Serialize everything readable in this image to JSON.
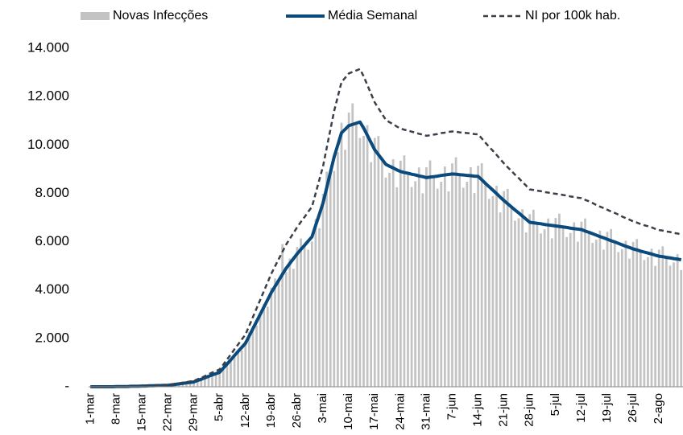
{
  "chart_data": {
    "type": "combo",
    "categories": [
      "1-mar",
      null,
      null,
      null,
      null,
      null,
      null,
      "8-mar",
      null,
      null,
      null,
      null,
      null,
      null,
      "15-mar",
      null,
      null,
      null,
      null,
      null,
      null,
      "22-mar",
      null,
      null,
      null,
      null,
      null,
      null,
      "29-mar",
      null,
      null,
      null,
      null,
      null,
      null,
      "5-abr",
      null,
      null,
      null,
      null,
      null,
      null,
      "12-abr",
      null,
      null,
      null,
      null,
      null,
      null,
      "19-abr",
      null,
      null,
      null,
      null,
      null,
      null,
      "26-abr",
      null,
      null,
      null,
      null,
      null,
      null,
      "3-mai",
      null,
      null,
      null,
      null,
      null,
      null,
      "10-mai",
      null,
      null,
      null,
      null,
      null,
      null,
      "17-mai",
      null,
      null,
      null,
      null,
      null,
      null,
      "24-mai",
      null,
      null,
      null,
      null,
      null,
      null,
      "31-mai",
      null,
      null,
      null,
      null,
      null,
      null,
      "7-jun",
      null,
      null,
      null,
      null,
      null,
      null,
      "14-jun",
      null,
      null,
      null,
      null,
      null,
      null,
      "21-jun",
      null,
      null,
      null,
      null,
      null,
      null,
      "28-jun",
      null,
      null,
      null,
      null,
      null,
      null,
      "5-jul",
      null,
      null,
      null,
      null,
      null,
      null,
      "12-jul",
      null,
      null,
      null,
      null,
      null,
      null,
      "19-jul",
      null,
      null,
      null,
      null,
      null,
      null,
      "26-jul",
      null,
      null,
      null,
      null,
      null,
      null,
      "2-ago",
      null,
      null,
      null,
      null,
      null,
      null
    ],
    "series": [
      {
        "name": "Novas Infecções",
        "type": "bar",
        "color": "#c3c3c3",
        "values": [
          0,
          0,
          0,
          0,
          0,
          0,
          10,
          10,
          10,
          10,
          20,
          20,
          30,
          20,
          30,
          30,
          40,
          40,
          50,
          50,
          60,
          60,
          90,
          100,
          110,
          140,
          170,
          170,
          210,
          280,
          310,
          350,
          420,
          510,
          500,
          630,
          830,
          940,
          1040,
          1250,
          1520,
          1500,
          1890,
          2270,
          2400,
          2540,
          2910,
          3430,
          3310,
          4100,
          4480,
          4400,
          5900,
          4750,
          5300,
          4880,
          5780,
          6130,
          5850,
          5670,
          6010,
          6940,
          6560,
          7980,
          8890,
          8870,
          8930,
          9700,
          10920,
          9800,
          11340,
          11720,
          10900,
          10290,
          10380,
          10820,
          9290,
          10290,
          10370,
          9400,
          8650,
          8850,
          9410,
          8250,
          9350,
          9570,
          8830,
          8260,
          8500,
          9070,
          8000,
          9080,
          9360,
          8690,
          8190,
          8480,
          9110,
          8080,
          9240,
          9490,
          8770,
          8230,
          8480,
          9080,
          8010,
          9140,
          9240,
          8410,
          7770,
          7890,
          8310,
          7210,
          8090,
          8180,
          7440,
          6870,
          6970,
          7340,
          6380,
          7140,
          7320,
          6760,
          6340,
          6510,
          6960,
          6140,
          6980,
          7160,
          6610,
          6190,
          6360,
          6800,
          6000,
          6830,
          6960,
          6390,
          5950,
          6080,
          6460,
          5670,
          6410,
          6520,
          5990,
          5570,
          5690,
          6040,
          5300,
          5990,
          6110,
          5610,
          5240,
          5360,
          5710,
          5000,
          5670,
          5810,
          5350,
          5010,
          5140,
          5490,
          4830
        ]
      },
      {
        "name": "Média Semanal",
        "type": "line",
        "color": "#0b4a7d",
        "width": 4,
        "values": [
          0,
          0,
          0,
          0,
          0,
          0,
          0,
          10,
          10,
          10,
          10,
          20,
          20,
          20,
          30,
          30,
          40,
          40,
          50,
          50,
          60,
          60,
          80,
          100,
          120,
          140,
          160,
          180,
          200,
          260,
          310,
          370,
          430,
          490,
          540,
          600,
          770,
          940,
          1110,
          1290,
          1460,
          1630,
          1800,
          2100,
          2400,
          2700,
          3000,
          3300,
          3600,
          3900,
          4150,
          4400,
          4650,
          4900,
          5100,
          5300,
          5500,
          5680,
          5850,
          6030,
          6200,
          6670,
          7130,
          7600,
          8230,
          8870,
          9500,
          10000,
          10500,
          10650,
          10800,
          10850,
          10900,
          10950,
          10700,
          10400,
          10100,
          9800,
          9600,
          9400,
          9200,
          9120,
          9050,
          8970,
          8900,
          8860,
          8830,
          8790,
          8760,
          8720,
          8690,
          8650,
          8670,
          8690,
          8710,
          8740,
          8760,
          8780,
          8800,
          8790,
          8770,
          8760,
          8740,
          8730,
          8710,
          8700,
          8560,
          8410,
          8270,
          8130,
          7990,
          7840,
          7700,
          7570,
          7440,
          7310,
          7190,
          7060,
          6930,
          6800,
          6780,
          6760,
          6740,
          6710,
          6690,
          6670,
          6650,
          6630,
          6610,
          6590,
          6560,
          6540,
          6520,
          6500,
          6440,
          6390,
          6330,
          6270,
          6210,
          6160,
          6100,
          6040,
          5990,
          5930,
          5870,
          5810,
          5760,
          5700,
          5660,
          5610,
          5570,
          5530,
          5490,
          5440,
          5400,
          5380,
          5350,
          5330,
          5300,
          5280,
          5250
        ]
      },
      {
        "name": "NI por 100k hab.",
        "type": "line",
        "color": "#3a3f48",
        "width": 2.5,
        "dashed": true,
        "values": [
          0,
          0,
          0,
          0,
          0,
          0,
          0,
          10,
          10,
          10,
          10,
          20,
          20,
          20,
          40,
          40,
          50,
          50,
          60,
          60,
          70,
          70,
          100,
          120,
          140,
          170,
          190,
          220,
          240,
          310,
          370,
          440,
          520,
          590,
          650,
          720,
          920,
          1130,
          1330,
          1550,
          1750,
          1960,
          2160,
          2520,
          2880,
          3240,
          3600,
          3960,
          4320,
          4680,
          4980,
          5280,
          5580,
          5880,
          6120,
          6360,
          6600,
          6820,
          7020,
          7240,
          7440,
          8000,
          8560,
          9120,
          9880,
          10640,
          11400,
          12000,
          12600,
          12780,
          12960,
          13020,
          13080,
          13140,
          12840,
          12480,
          12120,
          11760,
          11520,
          11280,
          11040,
          10940,
          10860,
          10760,
          10680,
          10630,
          10600,
          10550,
          10510,
          10460,
          10430,
          10380,
          10400,
          10430,
          10450,
          10490,
          10510,
          10540,
          10560,
          10550,
          10520,
          10510,
          10490,
          10480,
          10450,
          10440,
          10270,
          10090,
          9920,
          9760,
          9590,
          9410,
          9240,
          9080,
          8930,
          8770,
          8630,
          8470,
          8320,
          8160,
          8140,
          8110,
          8090,
          8050,
          8030,
          8000,
          7980,
          7960,
          7930,
          7910,
          7870,
          7850,
          7820,
          7800,
          7730,
          7670,
          7600,
          7520,
          7450,
          7390,
          7320,
          7250,
          7190,
          7120,
          7040,
          6970,
          6910,
          6840,
          6790,
          6730,
          6680,
          6640,
          6590,
          6530,
          6480,
          6460,
          6420,
          6400,
          6360,
          6340,
          6300
        ]
      }
    ],
    "ylim": [
      0,
      14000
    ],
    "yticks": [
      {
        "value": 0,
        "label": "-"
      },
      {
        "value": 2000,
        "label": "2.000"
      },
      {
        "value": 4000,
        "label": "4.000"
      },
      {
        "value": 6000,
        "label": "6.000"
      },
      {
        "value": 8000,
        "label": "8.000"
      },
      {
        "value": 10000,
        "label": "10.000"
      },
      {
        "value": 12000,
        "label": "12.000"
      },
      {
        "value": 14000,
        "label": "14.000"
      }
    ],
    "grid": false,
    "legend": "top"
  }
}
